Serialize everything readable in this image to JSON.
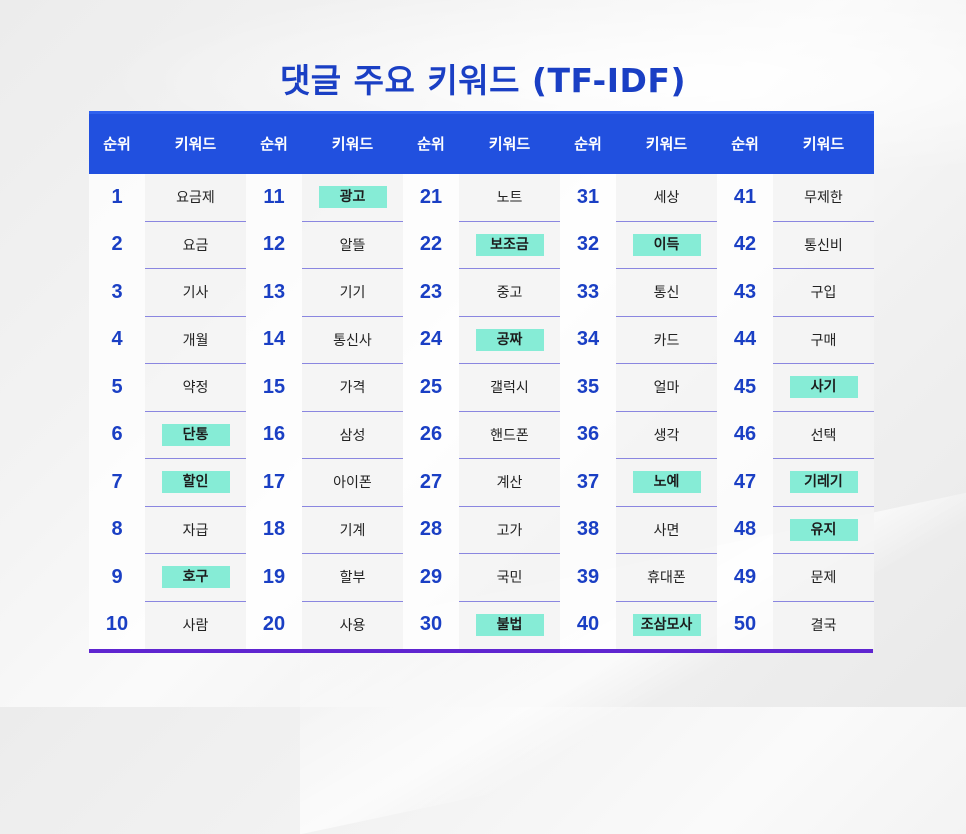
{
  "title": "댓글 주요 키워드 (TF-IDF)",
  "colors": {
    "title": "#1a3fc4",
    "header_bg": "#2150df",
    "rank_text": "#1a3fc4",
    "highlight": "#86ecd6",
    "row_divider": "#8a86e0",
    "bottom_bar": "#5f25d0"
  },
  "headers": [
    "순위",
    "키워드",
    "순위",
    "키워드",
    "순위",
    "키워드",
    "순위",
    "키워드",
    "순위",
    "키워드"
  ],
  "rows": [
    [
      {
        "rank": "1",
        "kw": "요금제",
        "hl": false
      },
      {
        "rank": "11",
        "kw": "광고",
        "hl": true
      },
      {
        "rank": "21",
        "kw": "노트",
        "hl": false
      },
      {
        "rank": "31",
        "kw": "세상",
        "hl": false
      },
      {
        "rank": "41",
        "kw": "무제한",
        "hl": false
      }
    ],
    [
      {
        "rank": "2",
        "kw": "요금",
        "hl": false
      },
      {
        "rank": "12",
        "kw": "알뜰",
        "hl": false
      },
      {
        "rank": "22",
        "kw": "보조금",
        "hl": true
      },
      {
        "rank": "32",
        "kw": "이득",
        "hl": true
      },
      {
        "rank": "42",
        "kw": "통신비",
        "hl": false
      }
    ],
    [
      {
        "rank": "3",
        "kw": "기사",
        "hl": false
      },
      {
        "rank": "13",
        "kw": "기기",
        "hl": false
      },
      {
        "rank": "23",
        "kw": "중고",
        "hl": false
      },
      {
        "rank": "33",
        "kw": "통신",
        "hl": false
      },
      {
        "rank": "43",
        "kw": "구입",
        "hl": false
      }
    ],
    [
      {
        "rank": "4",
        "kw": "개월",
        "hl": false
      },
      {
        "rank": "14",
        "kw": "통신사",
        "hl": false
      },
      {
        "rank": "24",
        "kw": "공짜",
        "hl": true
      },
      {
        "rank": "34",
        "kw": "카드",
        "hl": false
      },
      {
        "rank": "44",
        "kw": "구매",
        "hl": false
      }
    ],
    [
      {
        "rank": "5",
        "kw": "약정",
        "hl": false
      },
      {
        "rank": "15",
        "kw": "가격",
        "hl": false
      },
      {
        "rank": "25",
        "kw": "갤럭시",
        "hl": false
      },
      {
        "rank": "35",
        "kw": "얼마",
        "hl": false
      },
      {
        "rank": "45",
        "kw": "사기",
        "hl": true
      }
    ],
    [
      {
        "rank": "6",
        "kw": "단통",
        "hl": true
      },
      {
        "rank": "16",
        "kw": "삼성",
        "hl": false
      },
      {
        "rank": "26",
        "kw": "핸드폰",
        "hl": false
      },
      {
        "rank": "36",
        "kw": "생각",
        "hl": false
      },
      {
        "rank": "46",
        "kw": "선택",
        "hl": false
      }
    ],
    [
      {
        "rank": "7",
        "kw": "할인",
        "hl": true
      },
      {
        "rank": "17",
        "kw": "아이폰",
        "hl": false
      },
      {
        "rank": "27",
        "kw": "계산",
        "hl": false
      },
      {
        "rank": "37",
        "kw": "노예",
        "hl": true
      },
      {
        "rank": "47",
        "kw": "기레기",
        "hl": true
      }
    ],
    [
      {
        "rank": "8",
        "kw": "자급",
        "hl": false
      },
      {
        "rank": "18",
        "kw": "기계",
        "hl": false
      },
      {
        "rank": "28",
        "kw": "고가",
        "hl": false
      },
      {
        "rank": "38",
        "kw": "사면",
        "hl": false
      },
      {
        "rank": "48",
        "kw": "유지",
        "hl": true
      }
    ],
    [
      {
        "rank": "9",
        "kw": "호구",
        "hl": true
      },
      {
        "rank": "19",
        "kw": "할부",
        "hl": false
      },
      {
        "rank": "29",
        "kw": "국민",
        "hl": false
      },
      {
        "rank": "39",
        "kw": "휴대폰",
        "hl": false
      },
      {
        "rank": "49",
        "kw": "문제",
        "hl": false
      }
    ],
    [
      {
        "rank": "10",
        "kw": "사람",
        "hl": false
      },
      {
        "rank": "20",
        "kw": "사용",
        "hl": false
      },
      {
        "rank": "30",
        "kw": "불법",
        "hl": true
      },
      {
        "rank": "40",
        "kw": "조삼모사",
        "hl": true
      },
      {
        "rank": "50",
        "kw": "결국",
        "hl": false
      }
    ]
  ]
}
